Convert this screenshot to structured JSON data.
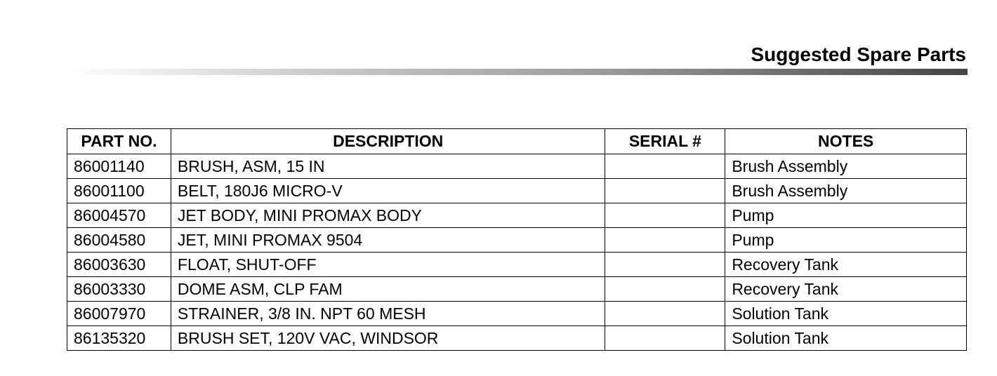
{
  "header": {
    "title": "Suggested Spare Parts"
  },
  "table": {
    "columns": [
      "PART NO.",
      "DESCRIPTION",
      "SERIAL #",
      "NOTES"
    ],
    "rows": [
      [
        "86001140",
        "BRUSH, ASM, 15 IN",
        "",
        "Brush Assembly"
      ],
      [
        "86001100",
        "BELT, 180J6 MICRO-V",
        "",
        "Brush Assembly"
      ],
      [
        "86004570",
        "JET BODY, MINI PROMAX BODY",
        "",
        "Pump"
      ],
      [
        "86004580",
        "JET, MINI PROMAX 9504",
        "",
        "Pump"
      ],
      [
        "86003630",
        "FLOAT, SHUT-OFF",
        "",
        "Recovery Tank"
      ],
      [
        "86003330",
        "DOME ASM, CLP FAM",
        "",
        "Recovery Tank"
      ],
      [
        "86007970",
        "STRAINER, 3/8 IN. NPT 60 MESH",
        "",
        "Solution Tank"
      ],
      [
        "86135320",
        "BRUSH SET, 120V VAC, WINDSOR",
        "",
        "Solution Tank"
      ]
    ]
  }
}
